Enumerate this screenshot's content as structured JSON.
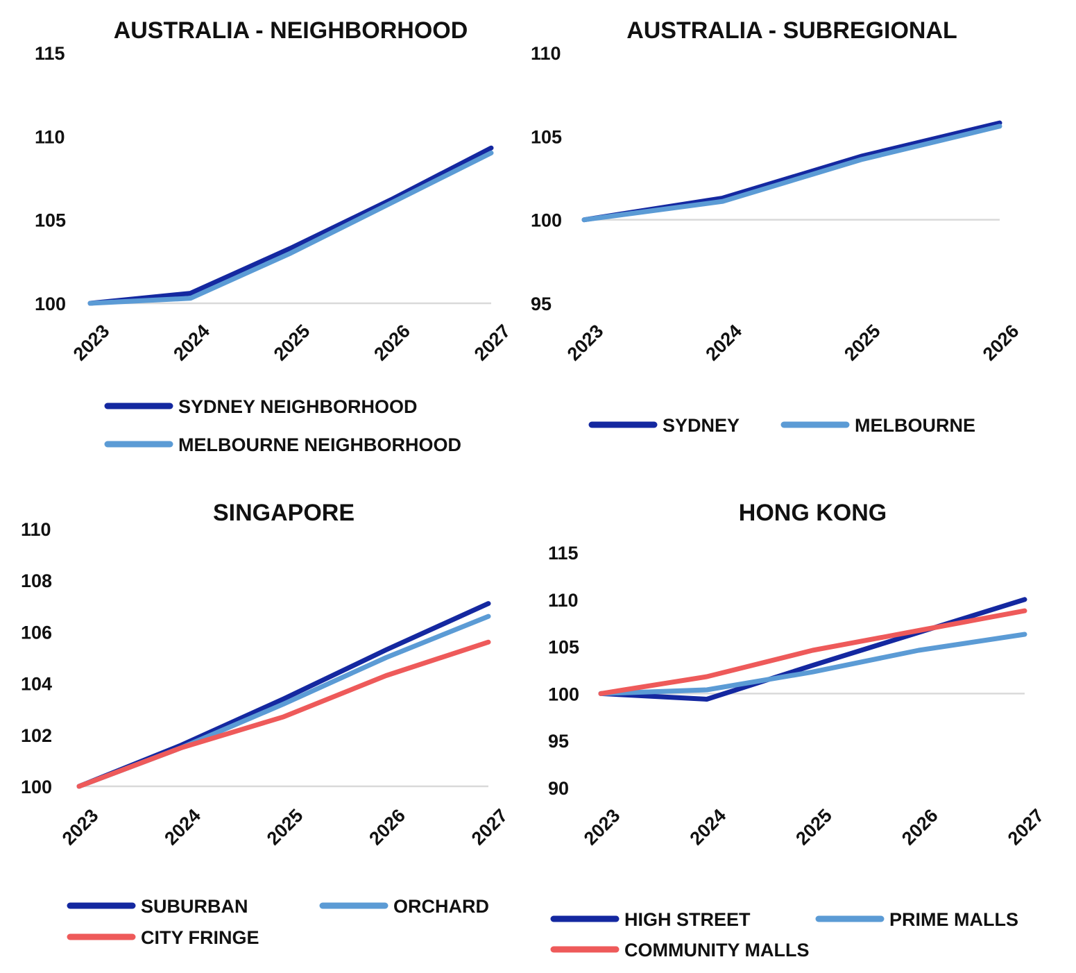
{
  "chart_data": [
    {
      "type": "line",
      "title": "AUSTRALIA - NEIGHBORHOOD",
      "categories": [
        "2023",
        "2024",
        "2025",
        "2026",
        "2027"
      ],
      "ylim": [
        100,
        115
      ],
      "yticks": [
        "100",
        "105",
        "110",
        "115"
      ],
      "series": [
        {
          "name": "SYDNEY NEIGHBORHOOD",
          "color": "#1428A0",
          "values": [
            100,
            100.6,
            103.3,
            106.2,
            109.3
          ]
        },
        {
          "name": "MELBOURNE NEIGHBORHOOD",
          "color": "#5B9BD5",
          "values": [
            100,
            100.3,
            103.0,
            106.0,
            109.0
          ]
        }
      ]
    },
    {
      "type": "line",
      "title": "AUSTRALIA - SUBREGIONAL",
      "categories": [
        "2023",
        "2024",
        "2025",
        "2026"
      ],
      "ylim": [
        95,
        110
      ],
      "yticks": [
        "95",
        "100",
        "105",
        "110"
      ],
      "series": [
        {
          "name": "SYDNEY",
          "color": "#1428A0",
          "values": [
            100,
            101.3,
            103.8,
            105.8
          ]
        },
        {
          "name": "MELBOURNE",
          "color": "#5B9BD5",
          "values": [
            100,
            101.1,
            103.6,
            105.6
          ]
        }
      ]
    },
    {
      "type": "line",
      "title": "SINGAPORE",
      "categories": [
        "2023",
        "2024",
        "2025",
        "2026",
        "2027"
      ],
      "ylim": [
        100,
        110
      ],
      "yticks": [
        "100",
        "102",
        "104",
        "106",
        "108",
        "110"
      ],
      "series": [
        {
          "name": "SUBURBAN",
          "color": "#1428A0",
          "values": [
            100,
            101.6,
            103.4,
            105.3,
            107.1
          ]
        },
        {
          "name": "ORCHARD",
          "color": "#5B9BD5",
          "values": [
            100,
            101.5,
            103.2,
            105.0,
            106.6
          ]
        },
        {
          "name": "CITY FRINGE",
          "color": "#EE5A5A",
          "values": [
            100,
            101.5,
            102.7,
            104.3,
            105.6
          ]
        }
      ]
    },
    {
      "type": "line",
      "title": "HONG KONG",
      "categories": [
        "2023",
        "2024",
        "2025",
        "2026",
        "2027"
      ],
      "ylim": [
        90,
        115
      ],
      "yticks": [
        "90",
        "95",
        "100",
        "105",
        "110",
        "115"
      ],
      "series": [
        {
          "name": "HIGH STREET",
          "color": "#1428A0",
          "values": [
            100,
            99.4,
            103.0,
            106.5,
            110.0
          ]
        },
        {
          "name": "PRIME MALLS",
          "color": "#5B9BD5",
          "values": [
            100,
            100.4,
            102.3,
            104.6,
            106.3
          ]
        },
        {
          "name": "COMMUNITY MALLS",
          "color": "#EE5A5A",
          "values": [
            100,
            101.8,
            104.6,
            106.7,
            108.8
          ]
        }
      ]
    }
  ]
}
